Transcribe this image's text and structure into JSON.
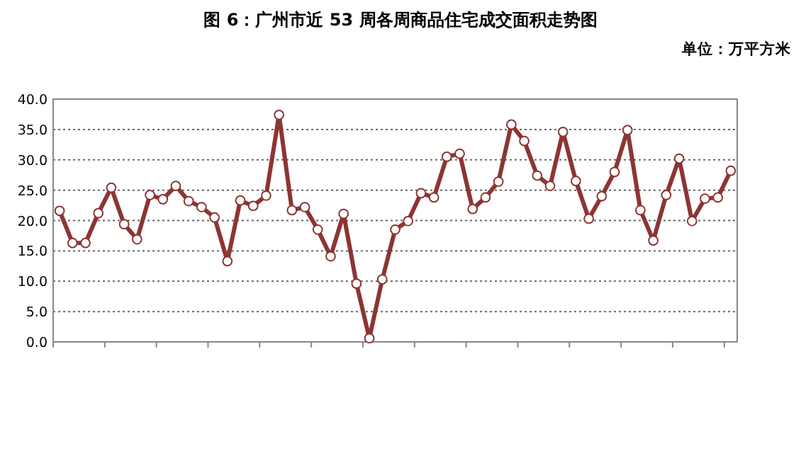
{
  "chart_data": {
    "type": "line",
    "title": "图 6：广州市近 53 周各周商品住宅成交面积走势图",
    "subtitle": "单位：万平方米",
    "categories": [
      null,
      null,
      null,
      null,
      null,
      null,
      null,
      null,
      null,
      null,
      null,
      null,
      null,
      null,
      null,
      null,
      null,
      null,
      null,
      null,
      null,
      null,
      null,
      null,
      null,
      null,
      null,
      null,
      null,
      null,
      null,
      null,
      null,
      null,
      null,
      null,
      null,
      null,
      null,
      null,
      null,
      null,
      null,
      null,
      null,
      null,
      null,
      null,
      null,
      null,
      null,
      null,
      null
    ],
    "series": [
      {
        "color": "#8c3534",
        "values": [
          21.6,
          16.3,
          16.3,
          21.2,
          25.4,
          19.4,
          16.9,
          24.2,
          23.5,
          25.7,
          23.2,
          22.2,
          20.5,
          13.3,
          23.3,
          22.4,
          24.1,
          37.4,
          21.7,
          22.2,
          18.5,
          14.1,
          21.1,
          9.6,
          0.6,
          10.3,
          18.5,
          19.9,
          24.5,
          23.8,
          30.5,
          31.0,
          21.9,
          23.8,
          26.4,
          35.8,
          33.1,
          27.4,
          25.7,
          34.6,
          26.5,
          20.3,
          24.0,
          28.0,
          34.9,
          21.7,
          16.7,
          24.2,
          30.2,
          19.9,
          23.6,
          23.8,
          28.2
        ]
      }
    ],
    "ylim": [
      0,
      40
    ],
    "yticks": [
      {
        "value": 0,
        "label": "0.0"
      },
      {
        "value": 5,
        "label": "5.0"
      },
      {
        "value": 10,
        "label": "10.0"
      },
      {
        "value": 15,
        "label": "15.0"
      },
      {
        "value": 20,
        "label": "20.0"
      },
      {
        "value": 25,
        "label": "25.0"
      },
      {
        "value": 30,
        "label": "30.0"
      },
      {
        "value": 35,
        "label": "35.0"
      },
      {
        "value": 40,
        "label": "40.0"
      }
    ],
    "grid": "y",
    "marker": "circle",
    "line_style": "solid"
  }
}
